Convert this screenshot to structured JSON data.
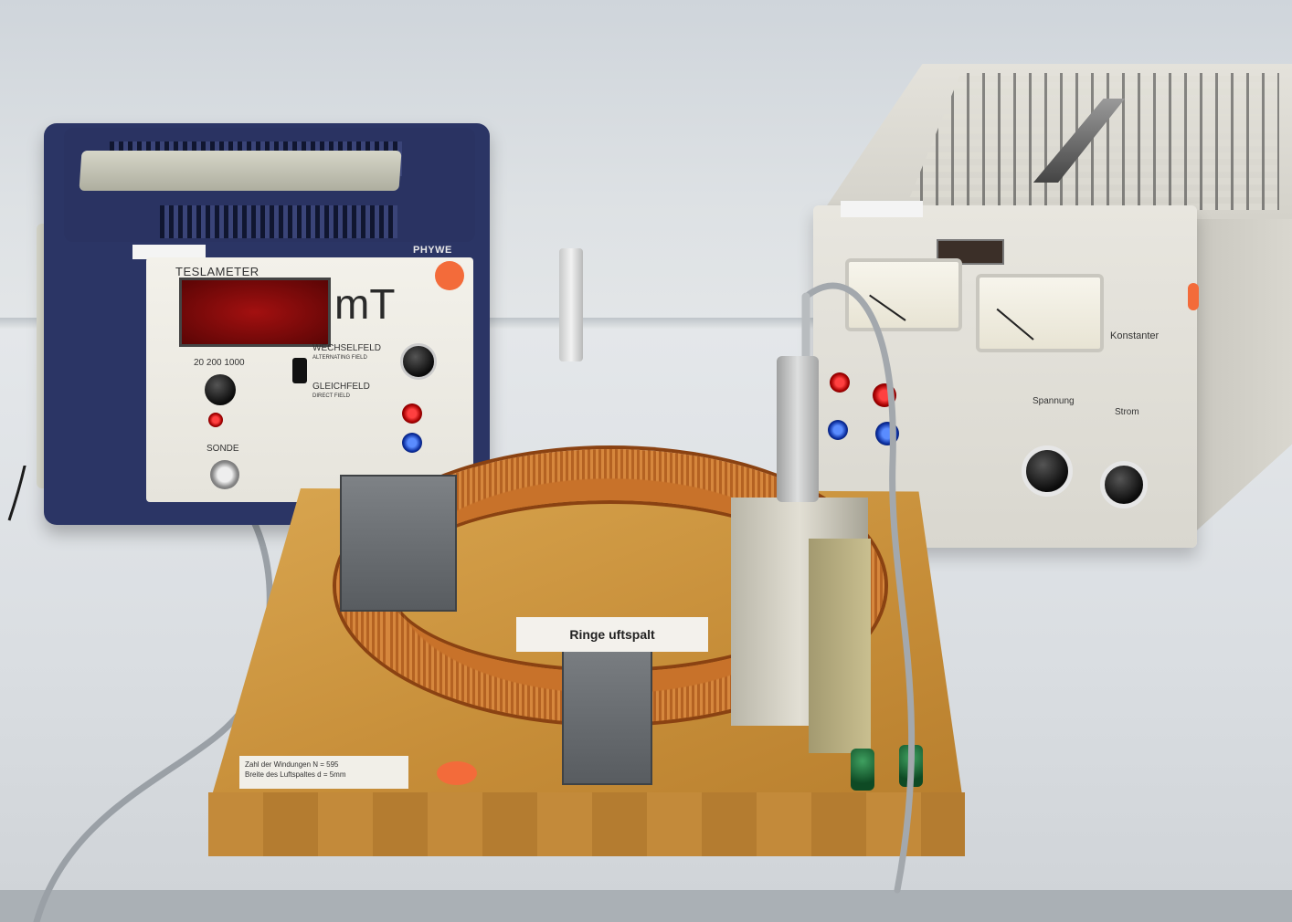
{
  "teslameter": {
    "label": "TESLAMETER",
    "brand": "PHYWE",
    "display_value": "",
    "unit": "mT",
    "range_labels": "20 200 1000",
    "ac_label": "WECHSELFELD",
    "ac_sublabel": "ALTERNATING FIELD",
    "dc_label": "GLEICHFELD",
    "dc_sublabel": "DIRECT FIELD",
    "probe_label": "SONDE"
  },
  "power_supply": {
    "label": "Konstanter",
    "voltage_label": "Spannung",
    "current_label": "Strom"
  },
  "board": {
    "label": "Ringe          uftspalt",
    "winding_note_line1": "Zahl der Windungen N = 595",
    "winding_note_line2": "Breite des Luftspaltes d = 5mm"
  },
  "colors": {
    "sticker_orange": "#f36b3a",
    "display_red": "#ff3a2a",
    "coil_copper": "#c8722a",
    "teslameter_navy": "#2b3565"
  }
}
